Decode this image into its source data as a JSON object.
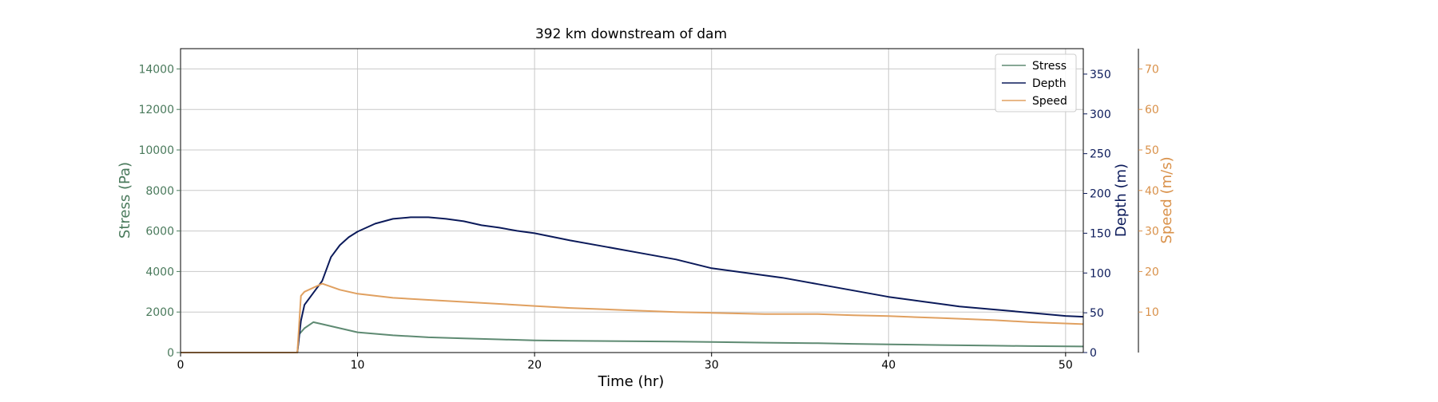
{
  "chart_data": {
    "type": "line",
    "title": "392 km downstream of dam",
    "xlabel": "Time (hr)",
    "xlim": [
      0,
      51
    ],
    "x_ticks": [
      0,
      10,
      20,
      30,
      40,
      50
    ],
    "grid": true,
    "legend_position": "top-right",
    "axes": {
      "stress": {
        "label": "Stress (Pa)",
        "range": [
          0,
          15000
        ],
        "ticks": [
          0,
          2000,
          4000,
          6000,
          8000,
          10000,
          12000,
          14000
        ],
        "color": "#4a7a5c"
      },
      "depth": {
        "label": "Depth (m)",
        "range": [
          0,
          382
        ],
        "ticks": [
          0,
          50,
          100,
          150,
          200,
          250,
          300,
          350
        ],
        "color": "#0b1a5a"
      },
      "speed": {
        "label": "Speed (m/s)",
        "range": [
          0,
          75
        ],
        "ticks": [
          10,
          20,
          30,
          40,
          50,
          60,
          70
        ],
        "color": "#d9914a"
      }
    },
    "series": [
      {
        "name": "Stress",
        "axis": "stress",
        "color": "#5e8a72",
        "x": [
          0,
          6.6,
          6.7,
          7,
          7.5,
          8,
          9,
          10,
          12,
          14,
          16,
          18,
          20,
          22,
          25,
          28,
          30,
          33,
          36,
          38,
          40,
          43,
          46,
          48,
          51
        ],
        "y": [
          0,
          0,
          900,
          1200,
          1500,
          1400,
          1200,
          1000,
          850,
          750,
          700,
          650,
          600,
          580,
          560,
          540,
          520,
          490,
          460,
          430,
          400,
          370,
          340,
          320,
          300
        ]
      },
      {
        "name": "Depth",
        "axis": "depth",
        "color": "#0b1a5a",
        "x": [
          0,
          6.6,
          6.8,
          7,
          7.5,
          8,
          8.5,
          9,
          9.5,
          10,
          11,
          12,
          13,
          14,
          15,
          16,
          17,
          18,
          19,
          20,
          22,
          24,
          26,
          28,
          30,
          32,
          34,
          36,
          38,
          40,
          42,
          44,
          46,
          48,
          50,
          51
        ],
        "y": [
          0,
          0,
          40,
          60,
          75,
          90,
          120,
          135,
          145,
          152,
          162,
          168,
          170,
          170,
          168,
          165,
          160,
          157,
          153,
          150,
          141,
          133,
          125,
          117,
          106,
          100,
          94,
          86,
          78,
          70,
          64,
          58,
          54,
          50,
          46,
          45
        ]
      },
      {
        "name": "Speed",
        "axis": "speed",
        "color": "#e0a060",
        "x": [
          0,
          6.6,
          6.8,
          7,
          7.5,
          8,
          9,
          10,
          12,
          14,
          16,
          18,
          20,
          22,
          25,
          28,
          30,
          33,
          36,
          38,
          40,
          43,
          46,
          48,
          51
        ],
        "y": [
          0,
          0,
          14,
          15,
          16,
          17,
          15.5,
          14.5,
          13.5,
          13,
          12.5,
          12,
          11.5,
          11,
          10.5,
          10,
          9.8,
          9.5,
          9.5,
          9.2,
          9,
          8.5,
          8,
          7.5,
          7
        ]
      }
    ]
  }
}
